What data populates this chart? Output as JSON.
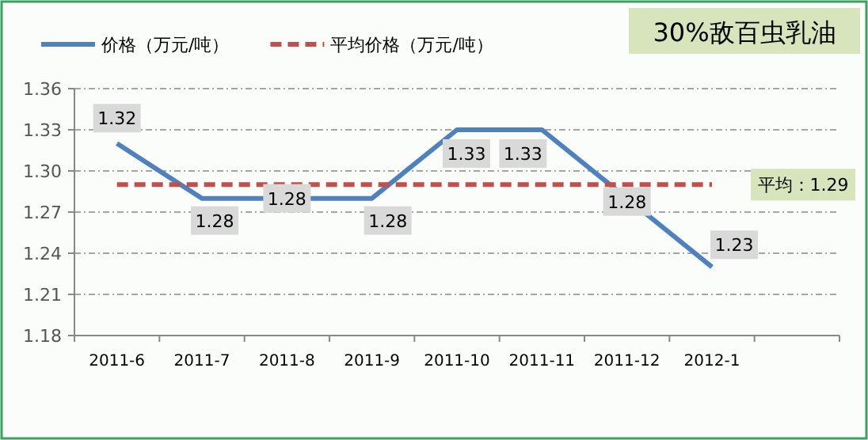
{
  "chart_data": {
    "type": "line",
    "title": "30%敌百虫乳油",
    "categories": [
      "2011-6",
      "2011-7",
      "2011-8",
      "2011-9",
      "2011-10",
      "2011-11",
      "2011-12",
      "2012-1",
      null
    ],
    "series": [
      {
        "name": "价格（万元/吨）",
        "color": "#4f81bd",
        "values": [
          1.32,
          1.28,
          1.28,
          1.28,
          1.33,
          1.33,
          1.28,
          1.23,
          null
        ],
        "value_labels": [
          "1.32",
          "1.28",
          "1.28",
          "1.28",
          "1.33",
          "1.33",
          "1.28",
          "1.23",
          null
        ]
      },
      {
        "name": "平均价格（万元/吨）",
        "color": "#c0504d",
        "line_style": "dashed",
        "values": [
          1.29,
          1.29,
          1.29,
          1.29,
          1.29,
          1.29,
          1.29,
          1.29,
          null
        ]
      }
    ],
    "annotations": [
      "平均：1.29"
    ],
    "ylim": [
      1.18,
      1.36
    ],
    "yticks": [
      1.18,
      1.21,
      1.24,
      1.27,
      {
        "value": 1.3,
        "label": "1.30"
      },
      1.33,
      1.36
    ],
    "grid": "y",
    "legend": "top left",
    "marker": "none"
  }
}
